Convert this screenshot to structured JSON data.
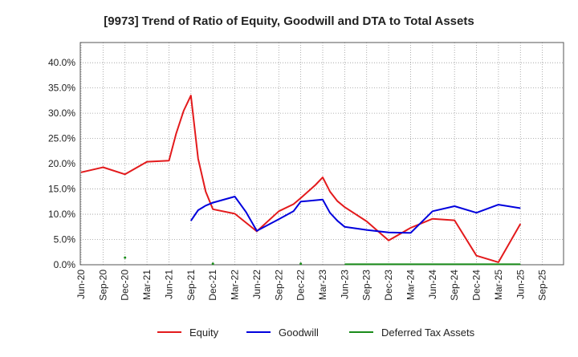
{
  "chart_data": {
    "type": "line",
    "title": "[9973]  Trend of Ratio of Equity, Goodwill and DTA to Total Assets",
    "xlabel": "",
    "ylabel": "",
    "x_ticks": [
      "Jun-20",
      "Sep-20",
      "Dec-20",
      "Mar-21",
      "Jun-21",
      "Sep-21",
      "Dec-21",
      "Mar-22",
      "Jun-22",
      "Sep-22",
      "Dec-22",
      "Mar-23",
      "Jun-23",
      "Sep-23",
      "Dec-23",
      "Mar-24",
      "Jun-24",
      "Sep-24",
      "Dec-24",
      "Mar-25",
      "Jun-25",
      "Sep-25"
    ],
    "y_ticks": [
      "0.0%",
      "5.0%",
      "10.0%",
      "15.0%",
      "20.0%",
      "25.0%",
      "30.0%",
      "35.0%",
      "40.0%"
    ],
    "ylim": [
      0,
      44
    ],
    "grid": true,
    "legend_position": "bottom",
    "series": [
      {
        "name": "Equity",
        "color": "#e31a1c",
        "points": [
          [
            0,
            18.3
          ],
          [
            1,
            19.3
          ],
          [
            2,
            17.9
          ],
          [
            3,
            20.4
          ],
          [
            4,
            20.6
          ],
          [
            4.33,
            26.0
          ],
          [
            4.67,
            30.5
          ],
          [
            5,
            33.5
          ],
          [
            5.33,
            21.0
          ],
          [
            5.67,
            14.5
          ],
          [
            6,
            11.0
          ],
          [
            7,
            10.1
          ],
          [
            8,
            6.6
          ],
          [
            9,
            10.6
          ],
          [
            9.67,
            12.0
          ],
          [
            10,
            13.2
          ],
          [
            10.67,
            15.8
          ],
          [
            11,
            17.3
          ],
          [
            11.33,
            14.5
          ],
          [
            11.67,
            12.6
          ],
          [
            12,
            11.4
          ],
          [
            13,
            8.6
          ],
          [
            14,
            4.8
          ],
          [
            15,
            7.3
          ],
          [
            16,
            9.1
          ],
          [
            17,
            8.8
          ],
          [
            18,
            1.8
          ],
          [
            19,
            0.5
          ],
          [
            20,
            8.1
          ]
        ]
      },
      {
        "name": "Goodwill",
        "color": "#0000dd",
        "points": [
          [
            5,
            8.7
          ],
          [
            5.33,
            10.8
          ],
          [
            5.67,
            11.7
          ],
          [
            6,
            12.3
          ],
          [
            7,
            13.5
          ],
          [
            7.5,
            10.5
          ],
          [
            8,
            6.7
          ],
          [
            9,
            9.0
          ],
          [
            9.67,
            10.6
          ],
          [
            10,
            12.5
          ],
          [
            11,
            12.9
          ],
          [
            11.33,
            10.3
          ],
          [
            11.67,
            8.7
          ],
          [
            12,
            7.5
          ],
          [
            13,
            6.9
          ],
          [
            14,
            6.4
          ],
          [
            15,
            6.3
          ],
          [
            16,
            10.6
          ],
          [
            17,
            11.6
          ],
          [
            18,
            10.3
          ],
          [
            19,
            11.9
          ],
          [
            20,
            11.2
          ]
        ]
      },
      {
        "name": "Deferred Tax Assets",
        "color": "#1a8c1a",
        "points": [
          [
            12,
            0.1
          ],
          [
            13,
            0.1
          ],
          [
            14,
            0.1
          ],
          [
            15,
            0.1
          ],
          [
            16,
            0.1
          ],
          [
            17,
            0.1
          ],
          [
            18,
            0.1
          ],
          [
            19,
            0.1
          ],
          [
            20,
            0.1
          ]
        ],
        "isolated_points": [
          [
            2,
            1.4
          ],
          [
            6,
            0.2
          ],
          [
            10,
            0.2
          ]
        ]
      }
    ]
  }
}
